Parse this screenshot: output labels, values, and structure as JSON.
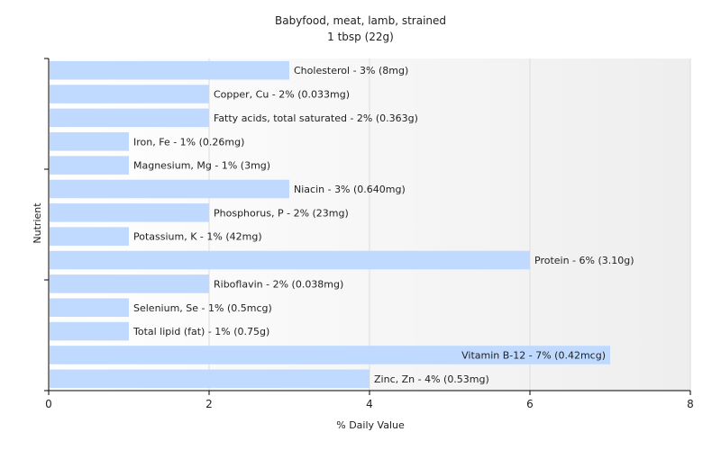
{
  "chart_data": {
    "type": "bar",
    "orientation": "horizontal",
    "title": "Babyfood, meat, lamb, strained",
    "subtitle": "1 tbsp (22g)",
    "xlabel": "% Daily Value",
    "ylabel": "Nutrient",
    "xlim": [
      0,
      8
    ],
    "xticks": [
      "0",
      "2",
      "4",
      "6",
      "8"
    ],
    "grid": true,
    "bar_color": "#bfd9ff",
    "background_gradient": [
      "#ffffff",
      "#eeeeee"
    ],
    "categories": [
      "Cholesterol",
      "Copper, Cu",
      "Fatty acids, total saturated",
      "Iron, Fe",
      "Magnesium, Mg",
      "Niacin",
      "Phosphorus, P",
      "Potassium, K",
      "Protein",
      "Riboflavin",
      "Selenium, Se",
      "Total lipid (fat)",
      "Vitamin B-12",
      "Zinc, Zn"
    ],
    "values": [
      3,
      2,
      2,
      1,
      1,
      3,
      2,
      1,
      6,
      2,
      1,
      1,
      7,
      4
    ],
    "labels": [
      "Cholesterol - 3% (8mg)",
      "Copper, Cu - 2% (0.033mg)",
      "Fatty acids, total saturated - 2% (0.363g)",
      "Iron, Fe - 1% (0.26mg)",
      "Magnesium, Mg - 1% (3mg)",
      "Niacin - 3% (0.640mg)",
      "Phosphorus, P - 2% (23mg)",
      "Potassium, K - 1% (42mg)",
      "Protein - 6% (3.10g)",
      "Riboflavin - 2% (0.038mg)",
      "Selenium, Se - 1% (0.5mcg)",
      "Total lipid (fat) - 1% (0.75g)",
      "Vitamin B-12 - 7% (0.42mcg)",
      "Zinc, Zn - 4% (0.53mg)"
    ]
  }
}
